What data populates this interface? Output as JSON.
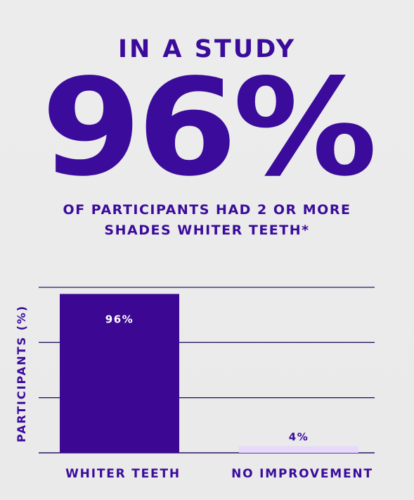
{
  "header": {
    "kicker": "IN A STUDY",
    "big_stat": "96%",
    "subhead_line1": "OF PARTICIPANTS HAD 2 OR MORE",
    "subhead_line2": "SHADES WHITER TEETH*"
  },
  "colors": {
    "primary": "#3b0b9b",
    "bar_primary": "#3c0893",
    "bar_secondary": "#e6d9fb",
    "background": "#ebebeb",
    "value_on_dark": "#ffffff"
  },
  "chart_data": {
    "type": "bar",
    "ylabel": "PARTICIPANTS (%)",
    "xlabel": "",
    "ylim": [
      0,
      100
    ],
    "grid": true,
    "categories": [
      "WHITER TEETH",
      "NO IMPROVEMENT"
    ],
    "values": [
      96,
      4
    ],
    "data_labels": [
      "96%",
      "4%"
    ]
  }
}
